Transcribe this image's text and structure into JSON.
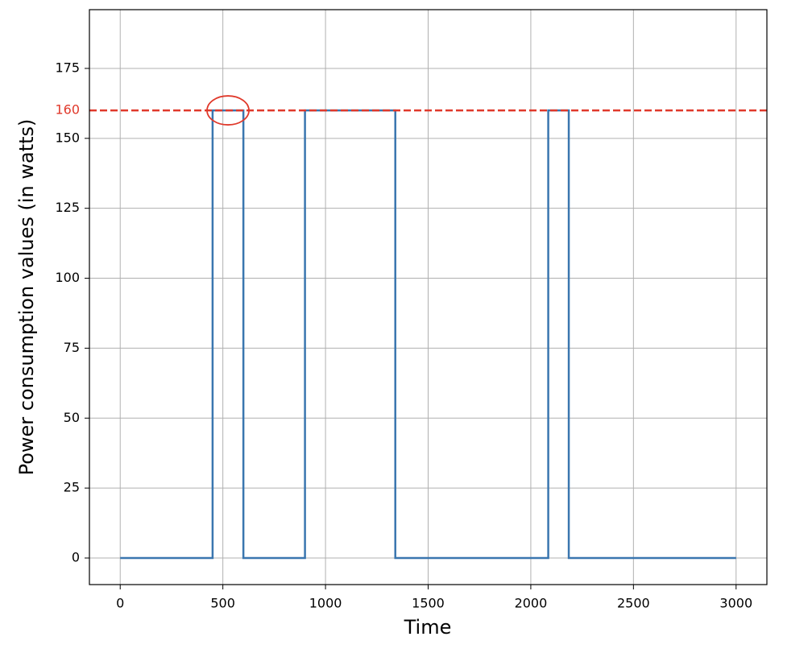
{
  "chart_data": {
    "type": "line",
    "x_label": "Time",
    "y_label": "Power consumption values (in watts)",
    "x": [
      0,
      450,
      450,
      600,
      600,
      900,
      900,
      1340,
      1340,
      2085,
      2085,
      2185,
      2185,
      3000
    ],
    "values": [
      0,
      0,
      160,
      160,
      0,
      0,
      160,
      160,
      0,
      0,
      160,
      160,
      0,
      0
    ],
    "color": "#3a76af",
    "hline": {
      "value": 160,
      "color": "#e0392b",
      "style": "dashed"
    },
    "xlim": [
      -150,
      3150
    ],
    "ylim": [
      -9.5,
      196
    ],
    "xticks": [
      0,
      500,
      1000,
      1500,
      2000,
      2500,
      3000
    ],
    "yticks": [
      0,
      25,
      50,
      75,
      100,
      125,
      150,
      175
    ],
    "grid": true
  }
}
